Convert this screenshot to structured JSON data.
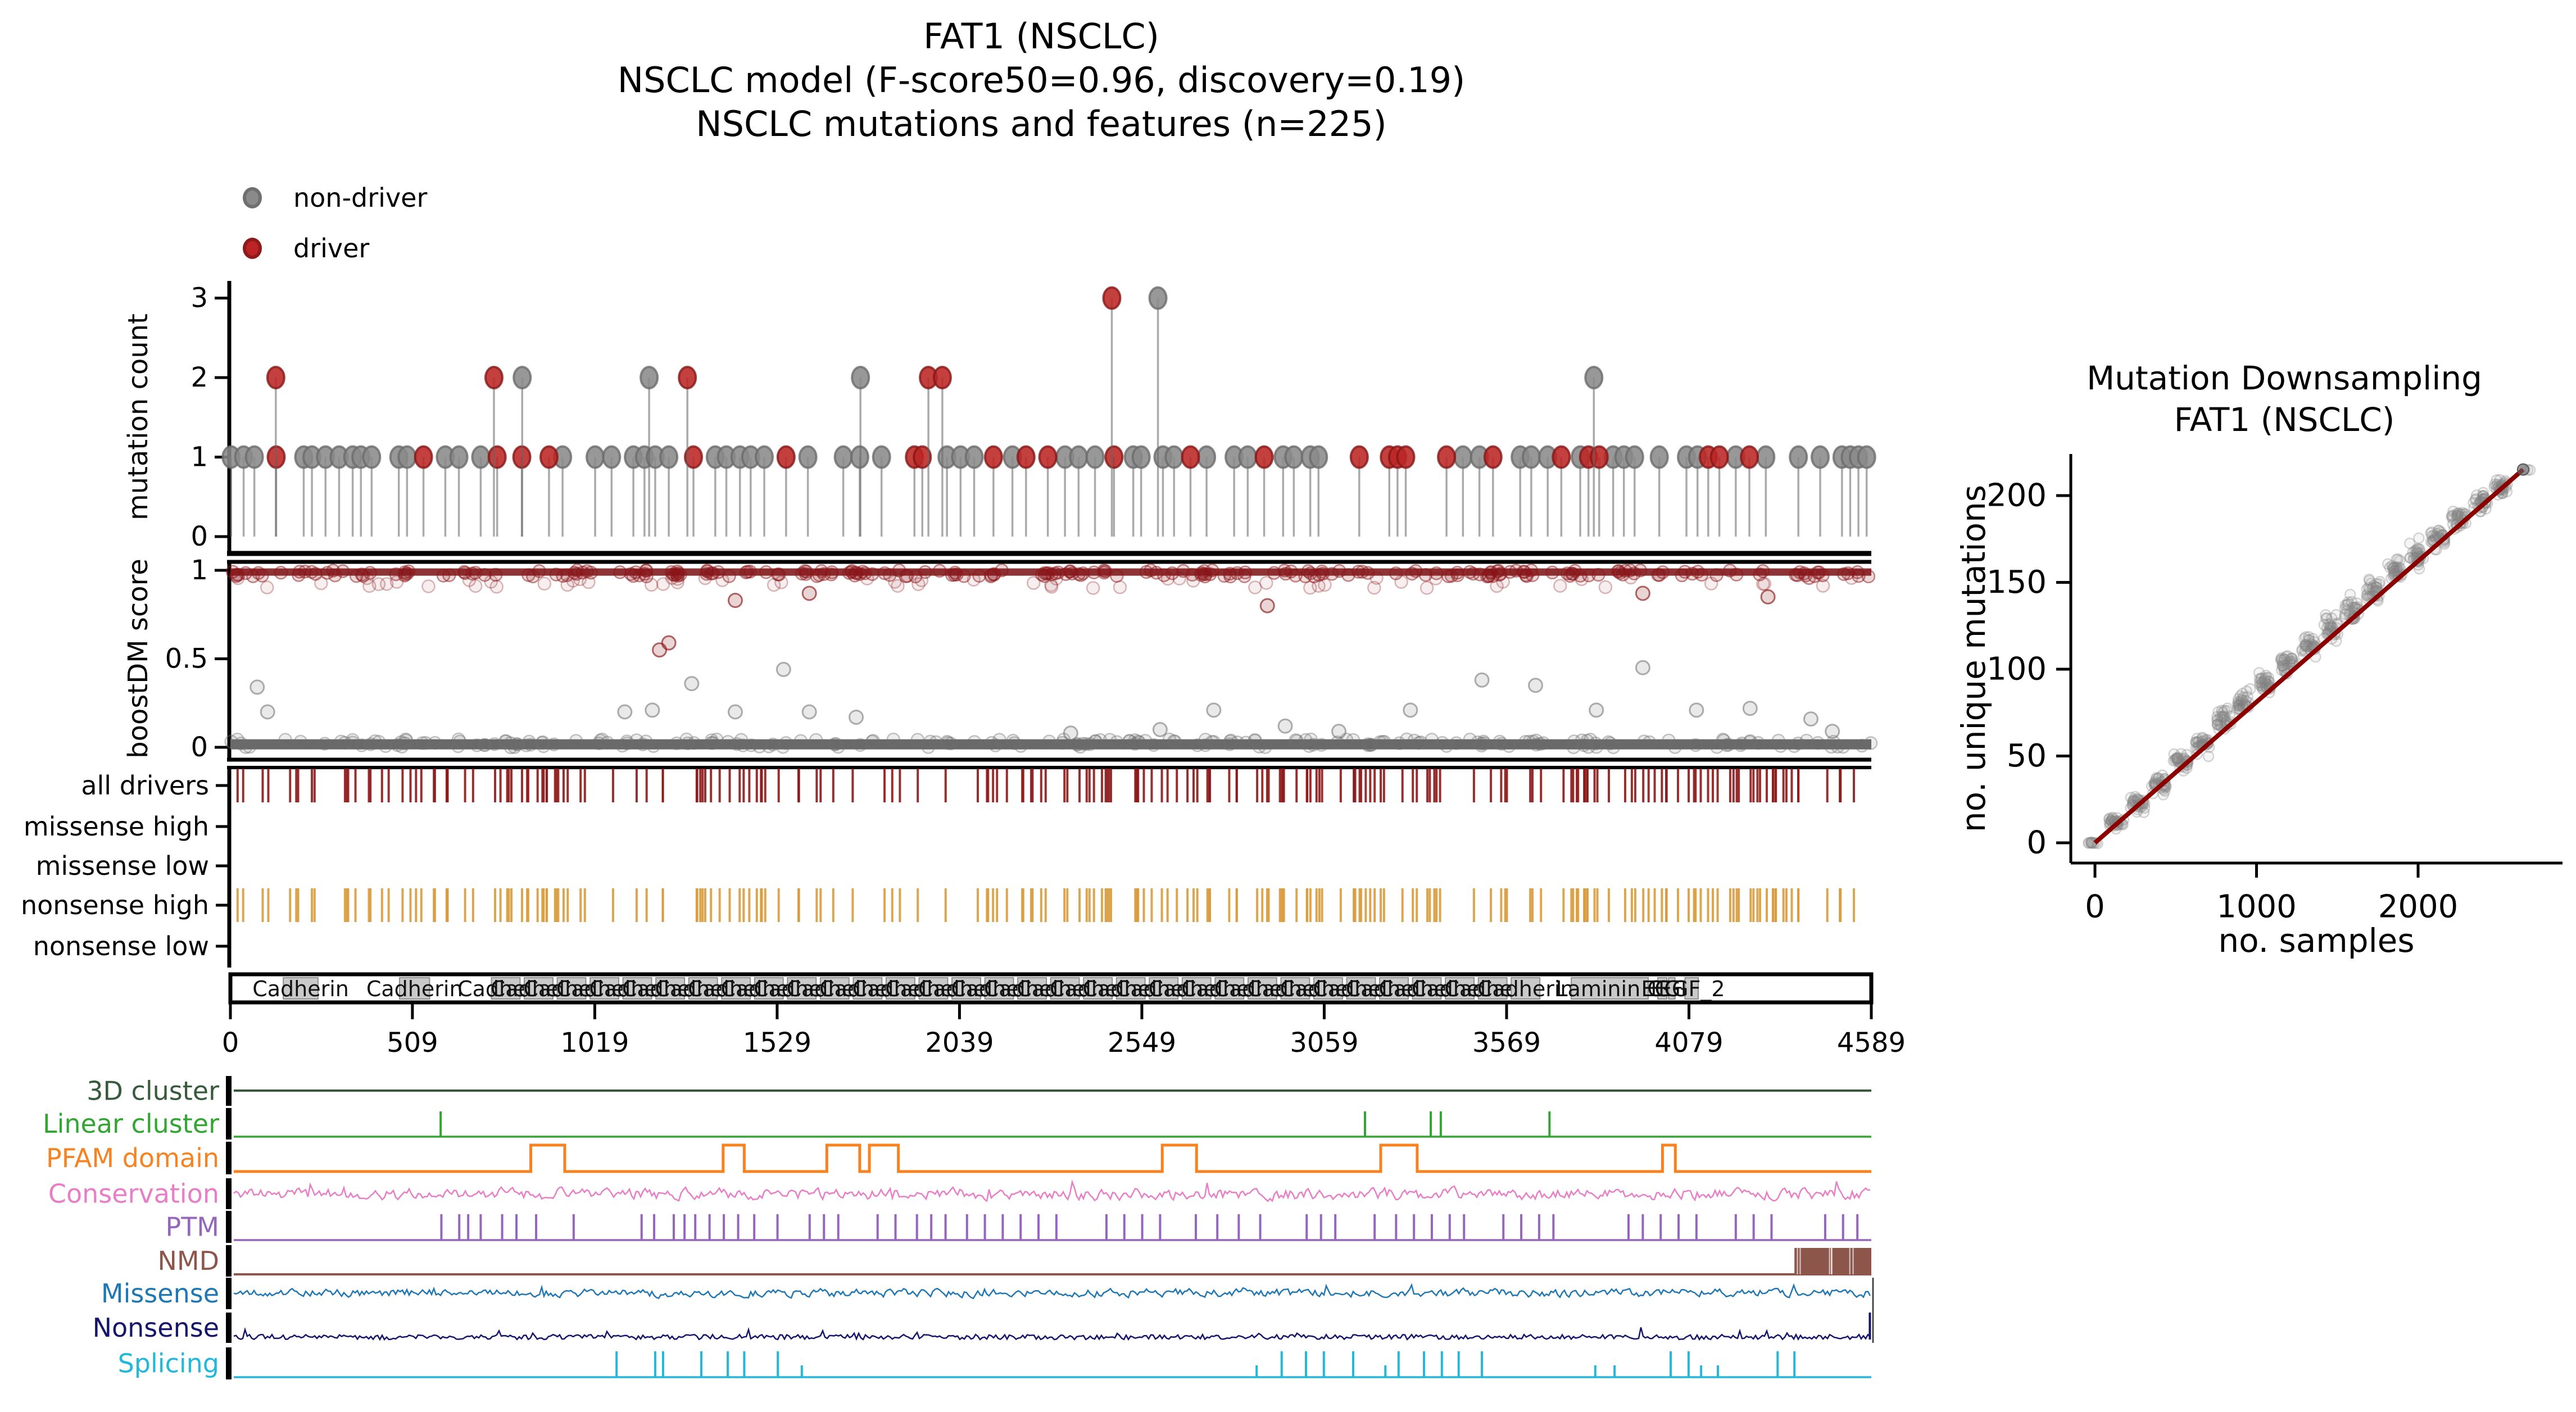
{
  "title": {
    "line1": "FAT1 (NSCLC)",
    "line2": "NSCLC model (F-score50=0.96, discovery=0.19)",
    "line3": "NSCLC mutations and features (n=225)"
  },
  "legend": {
    "non_driver_label": "non-driver",
    "driver_label": "driver",
    "non_driver_color": "#8a8a8a",
    "non_driver_edge": "#6f6f6f",
    "driver_color": "#bd2426",
    "driver_edge": "#8e1a1a"
  },
  "chart_data": {
    "needle_plot": {
      "type": "scatter",
      "ylabel": "mutation count",
      "yticks": [
        0,
        1,
        2,
        3
      ],
      "xlim": [
        0,
        4589
      ],
      "ylim": [
        0,
        3
      ],
      "stem_color": "#666666",
      "gray_color": "#8a8a8a",
      "gray_edge": "#6b6b6b",
      "red_color": "#bb2524",
      "red_edge": "#871717",
      "count1_gray": [
        2,
        37,
        67,
        205,
        228,
        266,
        304,
        342,
        365,
        395,
        471,
        494,
        601,
        639,
        700,
        929,
        1020,
        1066,
        1127,
        1158,
        1188,
        1226,
        1356,
        1387,
        1425,
        1455,
        1493,
        1615,
        1714,
        1760,
        1821,
        2004,
        2042,
        2080,
        2187,
        2334,
        2372,
        2418,
        2525,
        2547,
        2608,
        2639,
        2730,
        2807,
        2845,
        2944,
        2974,
        3020,
        3043,
        3447,
        3493,
        3607,
        3638,
        3684,
        3775,
        3867,
        3897,
        3927,
        3996,
        4072,
        4103,
        4210,
        4294,
        4385,
        4446,
        4507,
        4530,
        4553,
        4576
      ],
      "count1_red": [
        128,
        540,
        746,
        815,
        891,
        1295,
        1554,
        1913,
        1935,
        2134,
        2225,
        2286,
        2471,
        2685,
        2891,
        3157,
        3241,
        3264,
        3287,
        3401,
        3531,
        3722,
        3798,
        3828,
        4133,
        4164,
        4248
      ],
      "count2": [
        {
          "pos": 127,
          "driver": true
        },
        {
          "pos": 737,
          "driver": true
        },
        {
          "pos": 816,
          "driver": false
        },
        {
          "pos": 1171,
          "driver": false
        },
        {
          "pos": 1278,
          "driver": true
        },
        {
          "pos": 1762,
          "driver": false
        },
        {
          "pos": 1952,
          "driver": true
        },
        {
          "pos": 1991,
          "driver": true
        },
        {
          "pos": 3813,
          "driver": false
        }
      ],
      "count3": [
        {
          "pos": 2465,
          "driver": true
        },
        {
          "pos": 2594,
          "driver": false
        }
      ]
    },
    "boostdm": {
      "type": "scatter",
      "ylabel": "boostDM score",
      "yticks": [
        0,
        0.5,
        1
      ],
      "red_color": "#8b1518",
      "gray_color": "#6e6e6e",
      "top_band": {
        "score_min": 0.965,
        "score_max": 1.0,
        "count": 250,
        "seed": 5
      },
      "sub_band": {
        "score_min": 0.9,
        "score_max": 0.96,
        "count": 65,
        "seed": 6
      },
      "zero_band": {
        "score_min": 0.0,
        "score_max": 0.045,
        "count": 220,
        "seed": 7
      },
      "mid_points_red": [
        [
          1200,
          0.55
        ],
        [
          1226,
          0.59
        ],
        [
          1412,
          0.83
        ],
        [
          1619,
          0.87
        ],
        [
          2900,
          0.8
        ],
        [
          3950,
          0.87
        ],
        [
          4300,
          0.85
        ]
      ],
      "mid_points_gray": [
        [
          75,
          0.34
        ],
        [
          104,
          0.2
        ],
        [
          1103,
          0.2
        ],
        [
          1180,
          0.21
        ],
        [
          1290,
          0.36
        ],
        [
          1412,
          0.2
        ],
        [
          1547,
          0.44
        ],
        [
          1619,
          0.2
        ],
        [
          1750,
          0.17
        ],
        [
          2350,
          0.08
        ],
        [
          2600,
          0.1
        ],
        [
          2750,
          0.21
        ],
        [
          2950,
          0.12
        ],
        [
          3100,
          0.09
        ],
        [
          3300,
          0.21
        ],
        [
          3500,
          0.38
        ],
        [
          3650,
          0.35
        ],
        [
          3820,
          0.21
        ],
        [
          3950,
          0.45
        ],
        [
          4100,
          0.21
        ],
        [
          4250,
          0.22
        ],
        [
          4420,
          0.16
        ],
        [
          4480,
          0.09
        ]
      ]
    },
    "driver_ticks": {
      "type": "heatmap",
      "rows": [
        {
          "label": "all drivers",
          "color": "#8b1a1a",
          "has_ticks": true
        },
        {
          "label": "missense high",
          "color": "#000000",
          "has_ticks": false
        },
        {
          "label": "missense low",
          "color": "#000000",
          "has_ticks": false
        },
        {
          "label": "nonsense high",
          "color": "#d89b3d",
          "has_ticks": true
        },
        {
          "label": "nonsense low",
          "color": "#000000",
          "has_ticks": false
        }
      ],
      "tick_count": 215,
      "seed": 9,
      "note": "all drivers and nonsense high share identical tick positions"
    },
    "domains": {
      "type": "table",
      "xticks": [
        0,
        509,
        1019,
        1529,
        2039,
        2549,
        3059,
        3569,
        4079,
        4589
      ],
      "box_fill": "#c9c9c9",
      "box_edge": "#8f8f8f",
      "entries": [
        [
          148,
          245,
          "Cadherin"
        ],
        [
          473,
          557,
          "Cadherin"
        ],
        [
          730,
          810,
          "Cadherin"
        ],
        [
          822,
          902,
          "Cadherin"
        ],
        [
          914,
          994,
          "Cadherin"
        ],
        [
          1006,
          1086,
          "Cadherin"
        ],
        [
          1098,
          1178,
          "Cadherin"
        ],
        [
          1190,
          1270,
          "Cadherin"
        ],
        [
          1282,
          1362,
          "Cadherin"
        ],
        [
          1374,
          1454,
          "Cadherin"
        ],
        [
          1466,
          1546,
          "Cadherin"
        ],
        [
          1558,
          1638,
          "Cadherin"
        ],
        [
          1650,
          1730,
          "Cadherin"
        ],
        [
          1742,
          1822,
          "Cadherin"
        ],
        [
          1834,
          1914,
          "Cadherin"
        ],
        [
          1926,
          2006,
          "Cadherin"
        ],
        [
          2018,
          2098,
          "Cadherin"
        ],
        [
          2110,
          2190,
          "Cadherin"
        ],
        [
          2202,
          2282,
          "Cadherin"
        ],
        [
          2294,
          2374,
          "Cadherin"
        ],
        [
          2386,
          2466,
          "Cadherin"
        ],
        [
          2478,
          2558,
          "Cadherin"
        ],
        [
          2570,
          2650,
          "Cadherin"
        ],
        [
          2662,
          2742,
          "Cadherin"
        ],
        [
          2754,
          2834,
          "Cadherin"
        ],
        [
          2846,
          2926,
          "Cadherin"
        ],
        [
          2938,
          3018,
          "Cadherin"
        ],
        [
          3030,
          3110,
          "Cadherin"
        ],
        [
          3122,
          3202,
          "Cadherin"
        ],
        [
          3214,
          3294,
          "Cadherin"
        ],
        [
          3306,
          3386,
          "Cadherin"
        ],
        [
          3398,
          3478,
          "Cadherin"
        ],
        [
          3490,
          3570,
          "Cadherin"
        ],
        [
          3582,
          3662,
          "Cadherin"
        ],
        [
          3750,
          3965,
          "Laminin G"
        ],
        [
          3992,
          4017,
          "EGF"
        ],
        [
          4022,
          4040,
          "EGF"
        ],
        [
          4068,
          4105,
          "EGF_2"
        ]
      ]
    },
    "feature_tracks": {
      "type": "line",
      "rows": [
        {
          "key": "cluster3d",
          "label": "3D cluster",
          "color": "#37593c",
          "kind": "flat"
        },
        {
          "key": "linear_cluster",
          "label": "Linear cluster",
          "color": "#33a532",
          "kind": "spikes",
          "positions": [
            588,
            3173,
            3357,
            3385,
            3689
          ]
        },
        {
          "key": "pfam_domain",
          "label": "PFAM domain",
          "color": "#f8821f",
          "kind": "pulses",
          "ranges": [
            [
              840,
              935
            ],
            [
              1378,
              1437
            ],
            [
              1668,
              1760
            ],
            [
              1787,
              1868
            ],
            [
              2606,
              2702
            ],
            [
              3217,
              3319
            ],
            [
              4005,
              4041
            ]
          ]
        },
        {
          "key": "conservation",
          "label": "Conservation",
          "color": "#e87ec6",
          "kind": "noise",
          "seed": 21,
          "amplitude": 1.0
        },
        {
          "key": "ptm",
          "label": "PTM",
          "color": "#9467bd",
          "kind": "spikes",
          "positions": [
            590,
            640,
            665,
            700,
            760,
            800,
            855,
            960,
            1150,
            1185,
            1240,
            1270,
            1300,
            1340,
            1380,
            1420,
            1465,
            1530,
            1620,
            1660,
            1700,
            1810,
            1860,
            1920,
            1960,
            2000,
            2060,
            2110,
            2160,
            2210,
            2260,
            2310,
            2450,
            2500,
            2550,
            2600,
            2700,
            2760,
            2820,
            2880,
            3010,
            3050,
            3090,
            3200,
            3260,
            3310,
            3360,
            3410,
            3450,
            3560,
            3610,
            3660,
            3700,
            3910,
            3950,
            4000,
            4050,
            4100,
            4210,
            4260,
            4310,
            4460,
            4510,
            4550
          ]
        },
        {
          "key": "nmd",
          "label": "NMD",
          "color": "#8c564b",
          "kind": "block",
          "block": [
            4374,
            4589
          ]
        },
        {
          "key": "missense",
          "label": "Missense",
          "color": "#1f77b4",
          "kind": "noise",
          "seed": 33,
          "amplitude": 0.8
        },
        {
          "key": "nonsense",
          "label": "Nonsense",
          "color": "#15156b",
          "kind": "noise_up",
          "seed": 44,
          "amplitude": 0.55,
          "end_spike": 4585
        },
        {
          "key": "splicing",
          "label": "Splicing",
          "color": "#22b8dc",
          "kind": "spikes2",
          "tall": [
            1080,
            1188,
            1210,
            1317,
            1391,
            1437,
            1531,
            2940,
            3008,
            3058,
            3140,
            3267,
            3338,
            3388,
            3435,
            3500,
            4028,
            4078,
            4327,
            4374
          ],
          "short": [
            1598,
            2870,
            3230,
            3817,
            3871,
            4113,
            4160
          ]
        }
      ]
    },
    "downsampling": {
      "type": "scatter",
      "title_lines": [
        "Mutation Downsampling",
        "FAT1 (NSCLC)"
      ],
      "xlabel": "no. samples",
      "ylabel": "no. unique mutations",
      "xticks": [
        0,
        1000,
        2000
      ],
      "yticks": [
        0,
        50,
        100,
        150,
        200
      ],
      "point_color": "#777777",
      "point_edge": "#8a8a8a",
      "line_color": "#8b0000",
      "trend_line": {
        "from": [
          0,
          0
        ],
        "to": [
          2650,
          215
        ]
      },
      "clusters": [
        {
          "x": 0,
          "mean": 0,
          "spread": 1,
          "n": 10
        },
        {
          "x": 132,
          "mean": 12,
          "spread": 5,
          "n": 30
        },
        {
          "x": 265,
          "mean": 23,
          "spread": 7,
          "n": 30
        },
        {
          "x": 397,
          "mean": 33,
          "spread": 8,
          "n": 30
        },
        {
          "x": 530,
          "mean": 46,
          "spread": 8,
          "n": 30
        },
        {
          "x": 662,
          "mean": 57,
          "spread": 9,
          "n": 30
        },
        {
          "x": 795,
          "mean": 70,
          "spread": 10,
          "n": 30
        },
        {
          "x": 927,
          "mean": 81,
          "spread": 10,
          "n": 30
        },
        {
          "x": 1060,
          "mean": 92,
          "spread": 10,
          "n": 30
        },
        {
          "x": 1192,
          "mean": 103,
          "spread": 10,
          "n": 30
        },
        {
          "x": 1325,
          "mean": 113,
          "spread": 10,
          "n": 30
        },
        {
          "x": 1457,
          "mean": 124,
          "spread": 10,
          "n": 30
        },
        {
          "x": 1590,
          "mean": 134,
          "spread": 11,
          "n": 30
        },
        {
          "x": 1722,
          "mean": 145,
          "spread": 11,
          "n": 30
        },
        {
          "x": 1855,
          "mean": 155,
          "spread": 12,
          "n": 30
        },
        {
          "x": 1987,
          "mean": 166,
          "spread": 11,
          "n": 30
        },
        {
          "x": 2120,
          "mean": 176,
          "spread": 10,
          "n": 30
        },
        {
          "x": 2252,
          "mean": 186,
          "spread": 9,
          "n": 30
        },
        {
          "x": 2385,
          "mean": 196,
          "spread": 8,
          "n": 30
        },
        {
          "x": 2517,
          "mean": 205,
          "spread": 6,
          "n": 30
        },
        {
          "x": 2650,
          "mean": 215,
          "spread": 1,
          "n": 3
        }
      ]
    }
  }
}
